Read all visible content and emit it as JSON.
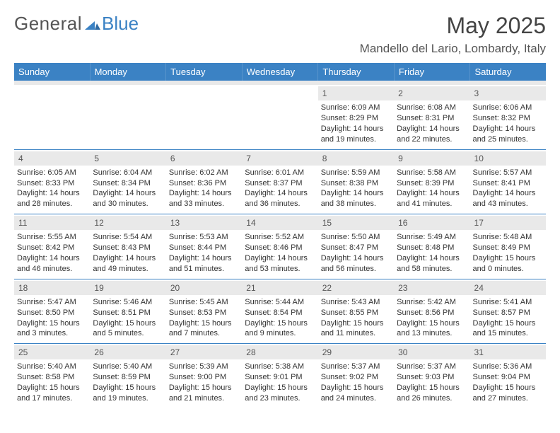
{
  "brand": {
    "text1": "General",
    "text2": "Blue",
    "color1": "#555555",
    "color2": "#3b82c4"
  },
  "title": {
    "month": "May 2025",
    "location": "Mandello del Lario, Lombardy, Italy"
  },
  "style": {
    "header_bg": "#3b82c4",
    "header_fg": "#ffffff",
    "daynum_bg": "#e9e9e9",
    "rule_color": "#3b82c4",
    "body_font_size": 11,
    "head_font_size": 13,
    "title_font_size": 32,
    "loc_font_size": 17
  },
  "dayheads": [
    "Sunday",
    "Monday",
    "Tuesday",
    "Wednesday",
    "Thursday",
    "Friday",
    "Saturday"
  ],
  "weeks": [
    [
      null,
      null,
      null,
      null,
      {
        "n": "1",
        "sr": "Sunrise: 6:09 AM",
        "ss": "Sunset: 8:29 PM",
        "dl1": "Daylight: 14 hours",
        "dl2": "and 19 minutes."
      },
      {
        "n": "2",
        "sr": "Sunrise: 6:08 AM",
        "ss": "Sunset: 8:31 PM",
        "dl1": "Daylight: 14 hours",
        "dl2": "and 22 minutes."
      },
      {
        "n": "3",
        "sr": "Sunrise: 6:06 AM",
        "ss": "Sunset: 8:32 PM",
        "dl1": "Daylight: 14 hours",
        "dl2": "and 25 minutes."
      }
    ],
    [
      {
        "n": "4",
        "sr": "Sunrise: 6:05 AM",
        "ss": "Sunset: 8:33 PM",
        "dl1": "Daylight: 14 hours",
        "dl2": "and 28 minutes."
      },
      {
        "n": "5",
        "sr": "Sunrise: 6:04 AM",
        "ss": "Sunset: 8:34 PM",
        "dl1": "Daylight: 14 hours",
        "dl2": "and 30 minutes."
      },
      {
        "n": "6",
        "sr": "Sunrise: 6:02 AM",
        "ss": "Sunset: 8:36 PM",
        "dl1": "Daylight: 14 hours",
        "dl2": "and 33 minutes."
      },
      {
        "n": "7",
        "sr": "Sunrise: 6:01 AM",
        "ss": "Sunset: 8:37 PM",
        "dl1": "Daylight: 14 hours",
        "dl2": "and 36 minutes."
      },
      {
        "n": "8",
        "sr": "Sunrise: 5:59 AM",
        "ss": "Sunset: 8:38 PM",
        "dl1": "Daylight: 14 hours",
        "dl2": "and 38 minutes."
      },
      {
        "n": "9",
        "sr": "Sunrise: 5:58 AM",
        "ss": "Sunset: 8:39 PM",
        "dl1": "Daylight: 14 hours",
        "dl2": "and 41 minutes."
      },
      {
        "n": "10",
        "sr": "Sunrise: 5:57 AM",
        "ss": "Sunset: 8:41 PM",
        "dl1": "Daylight: 14 hours",
        "dl2": "and 43 minutes."
      }
    ],
    [
      {
        "n": "11",
        "sr": "Sunrise: 5:55 AM",
        "ss": "Sunset: 8:42 PM",
        "dl1": "Daylight: 14 hours",
        "dl2": "and 46 minutes."
      },
      {
        "n": "12",
        "sr": "Sunrise: 5:54 AM",
        "ss": "Sunset: 8:43 PM",
        "dl1": "Daylight: 14 hours",
        "dl2": "and 49 minutes."
      },
      {
        "n": "13",
        "sr": "Sunrise: 5:53 AM",
        "ss": "Sunset: 8:44 PM",
        "dl1": "Daylight: 14 hours",
        "dl2": "and 51 minutes."
      },
      {
        "n": "14",
        "sr": "Sunrise: 5:52 AM",
        "ss": "Sunset: 8:46 PM",
        "dl1": "Daylight: 14 hours",
        "dl2": "and 53 minutes."
      },
      {
        "n": "15",
        "sr": "Sunrise: 5:50 AM",
        "ss": "Sunset: 8:47 PM",
        "dl1": "Daylight: 14 hours",
        "dl2": "and 56 minutes."
      },
      {
        "n": "16",
        "sr": "Sunrise: 5:49 AM",
        "ss": "Sunset: 8:48 PM",
        "dl1": "Daylight: 14 hours",
        "dl2": "and 58 minutes."
      },
      {
        "n": "17",
        "sr": "Sunrise: 5:48 AM",
        "ss": "Sunset: 8:49 PM",
        "dl1": "Daylight: 15 hours",
        "dl2": "and 0 minutes."
      }
    ],
    [
      {
        "n": "18",
        "sr": "Sunrise: 5:47 AM",
        "ss": "Sunset: 8:50 PM",
        "dl1": "Daylight: 15 hours",
        "dl2": "and 3 minutes."
      },
      {
        "n": "19",
        "sr": "Sunrise: 5:46 AM",
        "ss": "Sunset: 8:51 PM",
        "dl1": "Daylight: 15 hours",
        "dl2": "and 5 minutes."
      },
      {
        "n": "20",
        "sr": "Sunrise: 5:45 AM",
        "ss": "Sunset: 8:53 PM",
        "dl1": "Daylight: 15 hours",
        "dl2": "and 7 minutes."
      },
      {
        "n": "21",
        "sr": "Sunrise: 5:44 AM",
        "ss": "Sunset: 8:54 PM",
        "dl1": "Daylight: 15 hours",
        "dl2": "and 9 minutes."
      },
      {
        "n": "22",
        "sr": "Sunrise: 5:43 AM",
        "ss": "Sunset: 8:55 PM",
        "dl1": "Daylight: 15 hours",
        "dl2": "and 11 minutes."
      },
      {
        "n": "23",
        "sr": "Sunrise: 5:42 AM",
        "ss": "Sunset: 8:56 PM",
        "dl1": "Daylight: 15 hours",
        "dl2": "and 13 minutes."
      },
      {
        "n": "24",
        "sr": "Sunrise: 5:41 AM",
        "ss": "Sunset: 8:57 PM",
        "dl1": "Daylight: 15 hours",
        "dl2": "and 15 minutes."
      }
    ],
    [
      {
        "n": "25",
        "sr": "Sunrise: 5:40 AM",
        "ss": "Sunset: 8:58 PM",
        "dl1": "Daylight: 15 hours",
        "dl2": "and 17 minutes."
      },
      {
        "n": "26",
        "sr": "Sunrise: 5:40 AM",
        "ss": "Sunset: 8:59 PM",
        "dl1": "Daylight: 15 hours",
        "dl2": "and 19 minutes."
      },
      {
        "n": "27",
        "sr": "Sunrise: 5:39 AM",
        "ss": "Sunset: 9:00 PM",
        "dl1": "Daylight: 15 hours",
        "dl2": "and 21 minutes."
      },
      {
        "n": "28",
        "sr": "Sunrise: 5:38 AM",
        "ss": "Sunset: 9:01 PM",
        "dl1": "Daylight: 15 hours",
        "dl2": "and 23 minutes."
      },
      {
        "n": "29",
        "sr": "Sunrise: 5:37 AM",
        "ss": "Sunset: 9:02 PM",
        "dl1": "Daylight: 15 hours",
        "dl2": "and 24 minutes."
      },
      {
        "n": "30",
        "sr": "Sunrise: 5:37 AM",
        "ss": "Sunset: 9:03 PM",
        "dl1": "Daylight: 15 hours",
        "dl2": "and 26 minutes."
      },
      {
        "n": "31",
        "sr": "Sunrise: 5:36 AM",
        "ss": "Sunset: 9:04 PM",
        "dl1": "Daylight: 15 hours",
        "dl2": "and 27 minutes."
      }
    ]
  ]
}
